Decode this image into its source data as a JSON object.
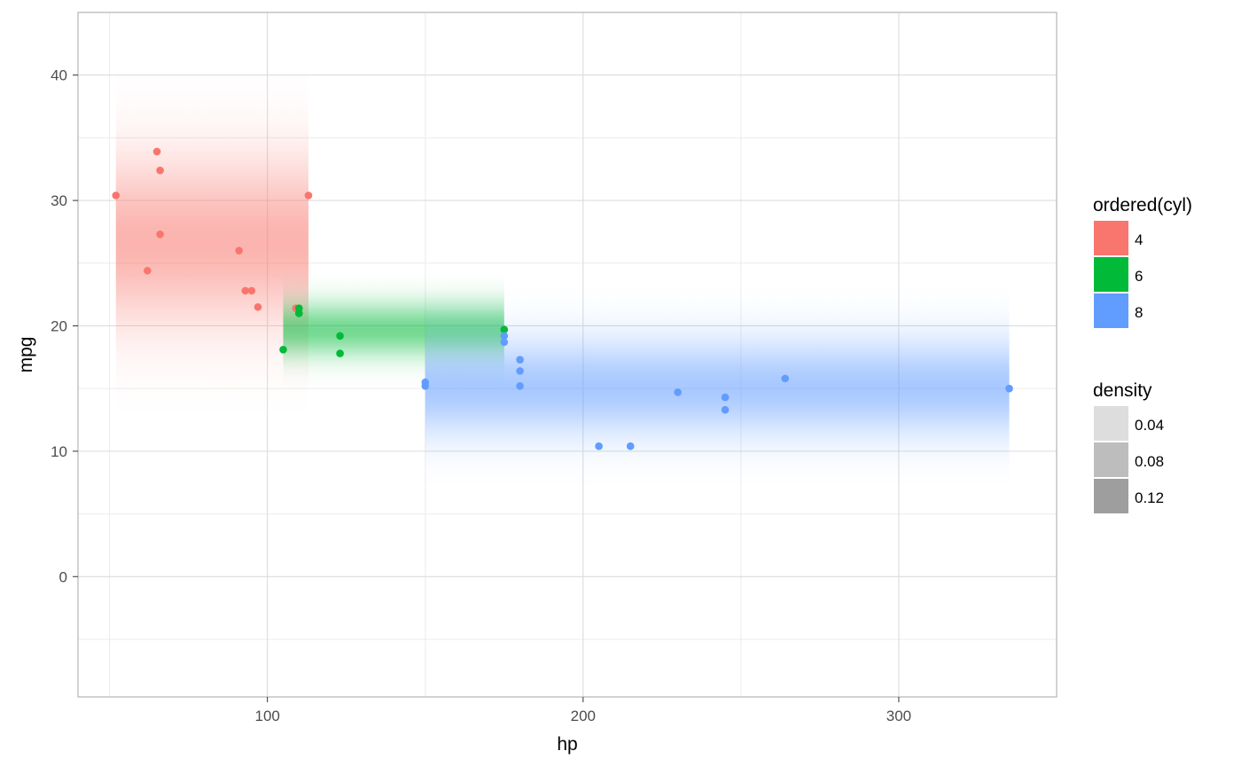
{
  "chart_data": {
    "type": "scatter",
    "title": "",
    "xlabel": "hp",
    "ylabel": "mpg",
    "xlim": [
      40,
      350
    ],
    "ylim": [
      -9.6,
      45
    ],
    "x_ticks": [
      100,
      200,
      300
    ],
    "y_ticks": [
      0,
      10,
      20,
      30,
      40
    ],
    "grid": true,
    "legend_position": "right",
    "color_legend": {
      "title": "ordered(cyl)",
      "entries": [
        {
          "label": "4",
          "color": "#F8766D"
        },
        {
          "label": "6",
          "color": "#00BA38"
        },
        {
          "label": "8",
          "color": "#619CFF"
        }
      ]
    },
    "density_legend": {
      "title": "density",
      "entries": [
        {
          "label": "0.04",
          "color": "#DDDDDD"
        },
        {
          "label": "0.08",
          "color": "#BDBDBD"
        },
        {
          "label": "0.12",
          "color": "#9E9E9E"
        }
      ]
    },
    "series": [
      {
        "name": "4",
        "color": "#F8766D",
        "density_region": {
          "x": [
            52,
            113
          ],
          "y_center": 26.7,
          "y_sd": 4.5
        },
        "points": [
          [
            52,
            30.4
          ],
          [
            62,
            24.4
          ],
          [
            65,
            33.9
          ],
          [
            66,
            32.4
          ],
          [
            66,
            27.3
          ],
          [
            91,
            26.0
          ],
          [
            93,
            22.8
          ],
          [
            95,
            22.8
          ],
          [
            97,
            21.5
          ],
          [
            109,
            21.4
          ],
          [
            113,
            30.4
          ]
        ]
      },
      {
        "name": "6",
        "color": "#00BA38",
        "density_region": {
          "x": [
            105,
            175
          ],
          "y_center": 19.7,
          "y_sd": 1.5
        },
        "points": [
          [
            105,
            18.1
          ],
          [
            110,
            21.0
          ],
          [
            110,
            21.0
          ],
          [
            110,
            21.4
          ],
          [
            123,
            19.2
          ],
          [
            123,
            17.8
          ],
          [
            175,
            19.7
          ]
        ]
      },
      {
        "name": "8",
        "color": "#619CFF",
        "density_region": {
          "x": [
            150,
            335
          ],
          "y_center": 15.1,
          "y_sd": 2.6
        },
        "points": [
          [
            150,
            15.5
          ],
          [
            150,
            15.2
          ],
          [
            175,
            18.7
          ],
          [
            175,
            19.2
          ],
          [
            180,
            16.4
          ],
          [
            180,
            17.3
          ],
          [
            180,
            15.2
          ],
          [
            205,
            10.4
          ],
          [
            215,
            10.4
          ],
          [
            230,
            14.7
          ],
          [
            245,
            14.3
          ],
          [
            245,
            13.3
          ],
          [
            264,
            15.8
          ],
          [
            335,
            15.0
          ]
        ]
      }
    ]
  }
}
